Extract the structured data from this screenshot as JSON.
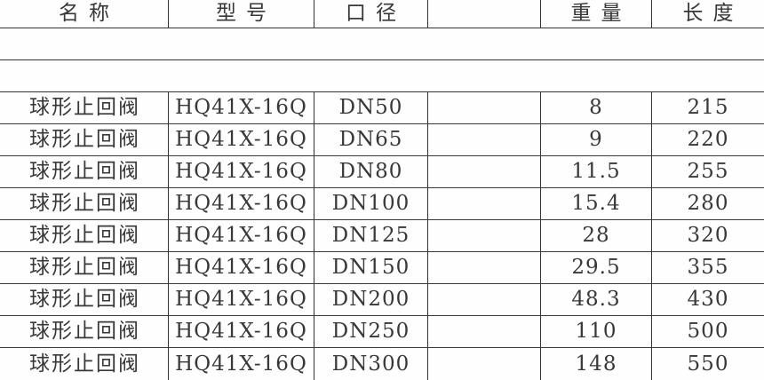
{
  "colors": {
    "background": "#fefefe",
    "text": "#383838",
    "border": "#333333"
  },
  "table": {
    "headers": {
      "name": "名称",
      "model": "型号",
      "diameter": "口径",
      "blank": "",
      "weight": "重量",
      "length": "长度"
    },
    "rows": [
      {
        "name": "球形止回阀",
        "model": "HQ41X-16Q",
        "diameter": "DN50",
        "blank": "",
        "weight": "8",
        "length": "215"
      },
      {
        "name": "球形止回阀",
        "model": "HQ41X-16Q",
        "diameter": "DN65",
        "blank": "",
        "weight": "9",
        "length": "220"
      },
      {
        "name": "球形止回阀",
        "model": "HQ41X-16Q",
        "diameter": "DN80",
        "blank": "",
        "weight": "11.5",
        "length": "255"
      },
      {
        "name": "球形止回阀",
        "model": "HQ41X-16Q",
        "diameter": "DN100",
        "blank": "",
        "weight": "15.4",
        "length": "280"
      },
      {
        "name": "球形止回阀",
        "model": "HQ41X-16Q",
        "diameter": "DN125",
        "blank": "",
        "weight": "28",
        "length": "320"
      },
      {
        "name": "球形止回阀",
        "model": "HQ41X-16Q",
        "diameter": "DN150",
        "blank": "",
        "weight": "29.5",
        "length": "355"
      },
      {
        "name": "球形止回阀",
        "model": "HQ41X-16Q",
        "diameter": "DN200",
        "blank": "",
        "weight": "48.3",
        "length": "430"
      },
      {
        "name": "球形止回阀",
        "model": "HQ41X-16Q",
        "diameter": "DN250",
        "blank": "",
        "weight": "110",
        "length": "500"
      },
      {
        "name": "球形止回阀",
        "model": "HQ41X-16Q",
        "diameter": "DN300",
        "blank": "",
        "weight": "148",
        "length": "550"
      }
    ]
  }
}
